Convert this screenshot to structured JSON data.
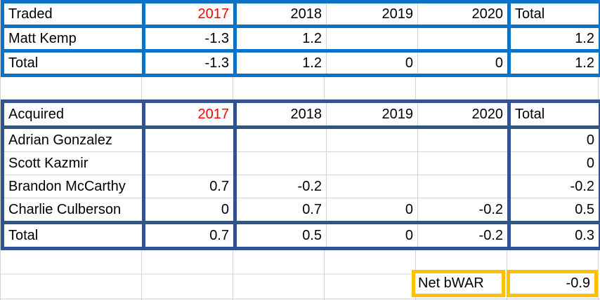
{
  "colors": {
    "traded_border": "#0B72C6",
    "acquired_border": "#32548E",
    "net_bwar_border": "#FFC000",
    "year_2017_text": "#FF0000",
    "gridline": "#D5D5D5",
    "text": "#000000",
    "background": "#FFFFFF"
  },
  "traded_table": {
    "title": "Traded",
    "years": [
      "2017",
      "2018",
      "2019",
      "2020"
    ],
    "total_header": "Total",
    "rows": [
      {
        "label": "Matt Kemp",
        "values": [
          "-1.3",
          "1.2",
          "",
          ""
        ],
        "total": "1.2"
      }
    ],
    "total_row": {
      "label": "Total",
      "values": [
        "-1.3",
        "1.2",
        "0",
        "0"
      ],
      "total": "1.2"
    }
  },
  "acquired_table": {
    "title": "Acquired",
    "years": [
      "2017",
      "2018",
      "2019",
      "2020"
    ],
    "total_header": "Total",
    "rows": [
      {
        "label": "Adrian Gonzalez",
        "values": [
          "",
          "",
          "",
          ""
        ],
        "total": "0"
      },
      {
        "label": "Scott Kazmir",
        "values": [
          "",
          "",
          "",
          ""
        ],
        "total": "0"
      },
      {
        "label": "Brandon McCarthy",
        "values": [
          "0.7",
          "-0.2",
          "",
          ""
        ],
        "total": "-0.2"
      },
      {
        "label": "Charlie Culberson",
        "values": [
          "0",
          "0.7",
          "0",
          "-0.2"
        ],
        "total": "0.5"
      }
    ],
    "total_row": {
      "label": "Total",
      "values": [
        "0.7",
        "0.5",
        "0",
        "-0.2"
      ],
      "total": "0.3"
    }
  },
  "net_bwar": {
    "label": "Net bWAR",
    "value": "-0.9"
  }
}
